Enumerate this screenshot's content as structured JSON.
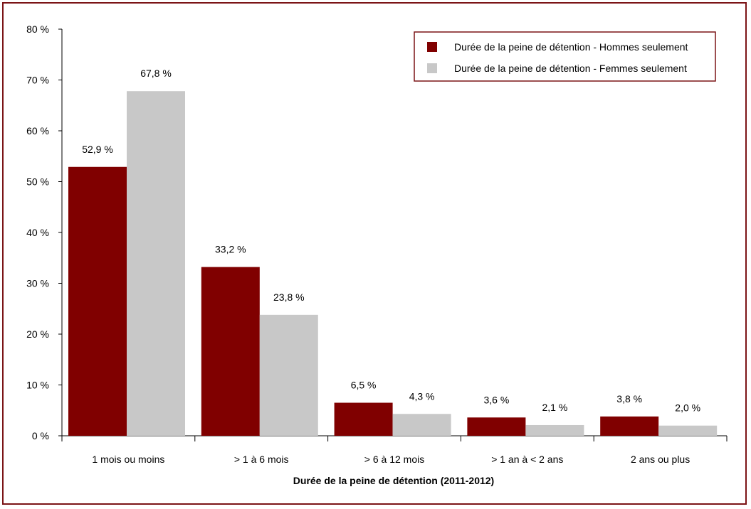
{
  "chart_data": {
    "type": "bar",
    "categories": [
      "1 mois ou moins",
      "> 1 à 6 mois",
      "> 6 à 12 mois",
      "> 1 an à < 2 ans",
      "2 ans ou plus"
    ],
    "series": [
      {
        "name": "Durée de la peine de détention - Hommes seulement",
        "values": [
          52.9,
          33.2,
          6.5,
          3.6,
          3.8
        ],
        "labels": [
          "52,9 %",
          "33,2 %",
          "6,5 %",
          "3,6 %",
          "3,8 %"
        ],
        "color": "#800000"
      },
      {
        "name": "Durée de la peine de détention - Femmes seulement",
        "values": [
          67.8,
          23.8,
          4.3,
          2.1,
          2.0
        ],
        "labels": [
          "67,8 %",
          "23,8 %",
          "4,3 %",
          "2,1 %",
          "2,0 %"
        ],
        "color": "#c8c8c8"
      }
    ],
    "xlabel": "Durée de la peine de détention  (2011-2012)",
    "ylabel": "",
    "ylim": [
      0,
      80
    ],
    "yticks": [
      {
        "value": 0,
        "label": "0 %"
      },
      {
        "value": 10,
        "label": "10 %"
      },
      {
        "value": 20,
        "label": "20 %"
      },
      {
        "value": 30,
        "label": "30 %"
      },
      {
        "value": 40,
        "label": "40 %"
      },
      {
        "value": 50,
        "label": "50 %"
      },
      {
        "value": 60,
        "label": "60 %"
      },
      {
        "value": 70,
        "label": "70 %"
      },
      {
        "value": 80,
        "label": "80 %"
      }
    ],
    "grid": false,
    "legend_position": "top-right",
    "frame_color": "#7b1416"
  }
}
